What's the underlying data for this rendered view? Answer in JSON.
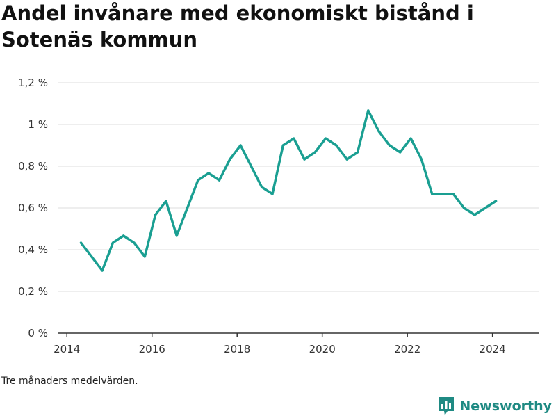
{
  "title": "Andel invånare med ekonomiskt bistånd i Sotenäs kommun",
  "note": "Tre månaders medelvärden.",
  "brand": {
    "name": "Newsworthy",
    "logo_icon": "bar-chart-icon"
  },
  "colors": {
    "line": "#1a9f92",
    "grid": "#dddddd",
    "axis": "#333333",
    "brand": "#1f8a83"
  },
  "chart_data": {
    "type": "line",
    "title": "Andel invånare med ekonomiskt bistånd i Sotenäs kommun",
    "xlabel": "",
    "ylabel": "",
    "xlim": [
      2013.8,
      2025.1
    ],
    "ylim": [
      0,
      1.2
    ],
    "y_ticks": [
      {
        "value": 0,
        "label": "0 %"
      },
      {
        "value": 0.2,
        "label": "0,2 %"
      },
      {
        "value": 0.4,
        "label": "0,4 %"
      },
      {
        "value": 0.6,
        "label": "0,6 %"
      },
      {
        "value": 0.8,
        "label": "0,8 %"
      },
      {
        "value": 1.0,
        "label": "1 %"
      },
      {
        "value": 1.2,
        "label": "1,2 %"
      }
    ],
    "x_ticks": [
      {
        "value": 2014,
        "label": "2014"
      },
      {
        "value": 2016,
        "label": "2016"
      },
      {
        "value": 2018,
        "label": "2018"
      },
      {
        "value": 2020,
        "label": "2020"
      },
      {
        "value": 2022,
        "label": "2022"
      },
      {
        "value": 2024,
        "label": "2024"
      }
    ],
    "grid": true,
    "legend": "none",
    "series": [
      {
        "x": [
          2014.33,
          2014.58,
          2014.83,
          2015.08,
          2015.33,
          2015.58,
          2015.83,
          2016.08,
          2016.33,
          2016.58,
          2016.83,
          2017.08,
          2017.33,
          2017.58,
          2017.83,
          2018.08,
          2018.33,
          2018.58,
          2018.83,
          2019.08,
          2019.33,
          2019.58,
          2019.83,
          2020.08,
          2020.33,
          2020.58,
          2020.83,
          2021.08,
          2021.33,
          2021.58,
          2021.83,
          2022.08,
          2022.33,
          2022.58,
          2022.83,
          2023.08,
          2023.33,
          2023.58,
          2023.83,
          2024.08
        ],
        "y": [
          0.433,
          0.367,
          0.3,
          0.433,
          0.467,
          0.433,
          0.367,
          0.567,
          0.633,
          0.467,
          0.6,
          0.733,
          0.767,
          0.733,
          0.833,
          0.9,
          0.8,
          0.7,
          0.667,
          0.9,
          0.933,
          0.833,
          0.867,
          0.933,
          0.9,
          0.833,
          0.867,
          1.067,
          0.967,
          0.9,
          0.867,
          0.933,
          0.833,
          0.667,
          0.667,
          0.667,
          0.6,
          0.567,
          0.6,
          0.633
        ]
      }
    ]
  }
}
